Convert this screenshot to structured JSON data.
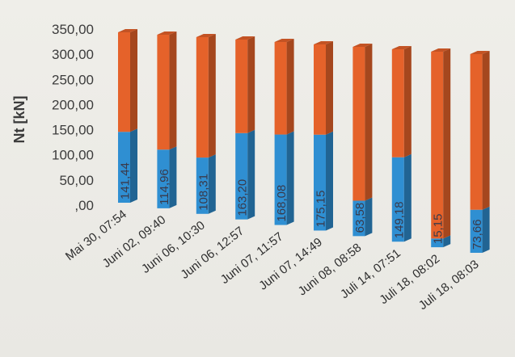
{
  "chart_data": {
    "type": "bar",
    "subtype": "stacked-3d-columns",
    "title": "",
    "xlabel": "",
    "ylabel": "Nt [kN]",
    "ylim": [
      0,
      350
    ],
    "y_ticks": [
      ",00",
      "50,00",
      "100,00",
      "150,00",
      "200,00",
      "250,00",
      "300,00",
      "350,00"
    ],
    "grid": false,
    "legend": "none",
    "categories": [
      "Mai 30, 07:54",
      "Juni 02, 09:40",
      "Juni 06, 10:30",
      "Juni 06, 12:57",
      "Juni 07, 11:57",
      "Juni 07, 14:49",
      "Juni 08, 08:58",
      "Juli 14, 07:51",
      "Juli 18, 08:02",
      "Juli 18, 08:03"
    ],
    "series": [
      {
        "color": "#2f8fd2",
        "values": [
          141.44,
          114.96,
          108.31,
          163.2,
          168.08,
          175.15,
          63.58,
          149.18,
          15.15,
          73.66
        ],
        "labels": [
          "141,44",
          "114,96",
          "108,31",
          "163,20",
          "168,08",
          "175,15",
          "63,58",
          "149,18",
          "15,15",
          "73,66"
        ]
      },
      {
        "color": "#e5622a",
        "values": [
          198.56,
          225.04,
          231.69,
          176.8,
          171.92,
          164.85,
          276.42,
          190.82,
          324.85,
          266.34
        ]
      }
    ]
  }
}
